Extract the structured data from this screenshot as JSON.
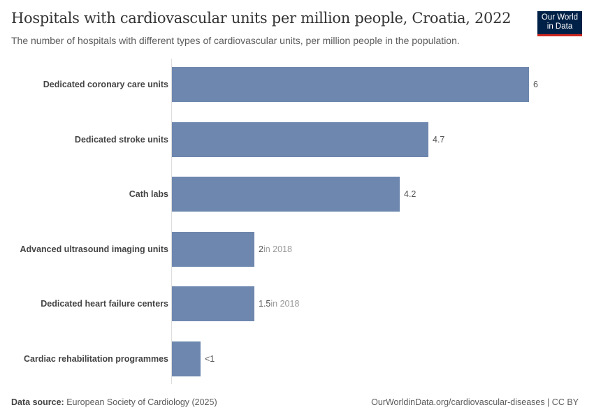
{
  "header": {
    "title": "Hospitals with cardiovascular units per million people, Croatia, 2022",
    "subtitle": "The number of hospitals with different types of cardiovascular units, per million people in the population.",
    "logo_line1": "Our World",
    "logo_line2": "in Data"
  },
  "footer": {
    "source_label": "Data source:",
    "source": "European Society of Cardiology (2025)",
    "url": "OurWorldinData.org/cardiovascular-diseases | CC BY"
  },
  "chart_data": {
    "type": "bar",
    "orientation": "horizontal",
    "title": "Hospitals with cardiovascular units per million people, Croatia, 2022",
    "categories": [
      "Dedicated coronary care units",
      "Dedicated stroke units",
      "Cath labs",
      "Advanced ultrasound imaging units",
      "Dedicated heart failure centers",
      "Cardiac rehabilitation programmes"
    ],
    "values": [
      6,
      4.7,
      4.2,
      2,
      1.5,
      0.5
    ],
    "value_labels": [
      "6",
      "4.7",
      "4.2",
      "2",
      "1.5",
      "<1"
    ],
    "notes": [
      "",
      "",
      "",
      "in 2018",
      "in 2018",
      ""
    ],
    "bar_color": "#6d87ae",
    "xlim": [
      0,
      6
    ],
    "grid": false,
    "legend": "none"
  }
}
